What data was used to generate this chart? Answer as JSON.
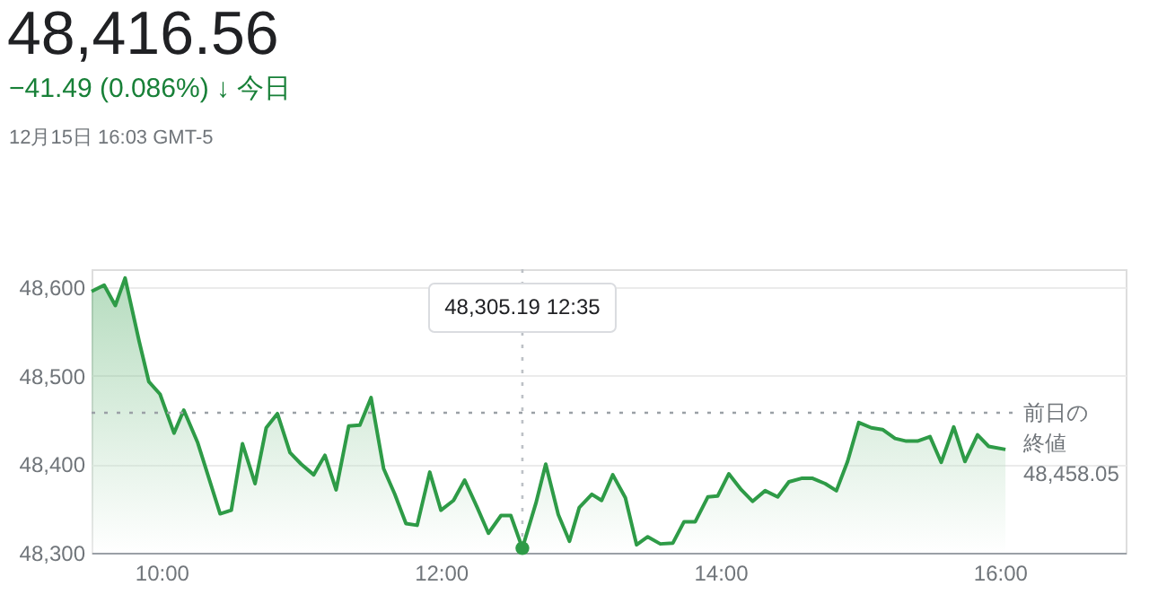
{
  "chart_data": {
    "type": "area",
    "title": "48,416.56",
    "subtitle": "−41.49 (0.086%) ↓ 今日",
    "annotations": [
      "12月15日 16:03 GMT-5",
      "48,305.19 12:35"
    ],
    "series": [
      {
        "color": "#2e9b47",
        "x": [
          9.5,
          9.59,
          9.67,
          9.74,
          9.84,
          9.91,
          9.99,
          10.09,
          10.16,
          10.26,
          10.42,
          10.5,
          10.58,
          10.67,
          10.75,
          10.83,
          10.92,
          11.0,
          11.09,
          11.17,
          11.25,
          11.34,
          11.42,
          11.5,
          11.59,
          11.67,
          11.75,
          11.83,
          11.92,
          12.0,
          12.09,
          12.17,
          12.26,
          12.34,
          12.43,
          12.5,
          12.583,
          12.68,
          12.75,
          12.84,
          12.92,
          12.99,
          13.08,
          13.15,
          13.23,
          13.32,
          13.4,
          13.48,
          13.57,
          13.66,
          13.74,
          13.82,
          13.91,
          13.98,
          14.06,
          14.15,
          14.23,
          14.32,
          14.41,
          14.49,
          14.58,
          14.66,
          14.75,
          14.83,
          14.91,
          14.99,
          15.08,
          15.16,
          15.25,
          15.33,
          15.41,
          15.5,
          15.58,
          15.67,
          15.75,
          15.84,
          15.92,
          16.04
        ],
        "values": [
          48595,
          48602,
          48579,
          48610,
          48539,
          48493,
          48479,
          48435,
          48461,
          48424,
          48344,
          48348,
          48423,
          48378,
          48441,
          48457,
          48413,
          48400,
          48388,
          48410,
          48371,
          48443,
          48444,
          48475,
          48395,
          48366,
          48333,
          48331,
          48391,
          48348,
          48359,
          48382,
          48351,
          48322,
          48342,
          48342,
          48305.19,
          48356,
          48400,
          48343,
          48313,
          48351,
          48366,
          48359,
          48388,
          48362,
          48309,
          48318,
          48310,
          48311,
          48335,
          48335,
          48363,
          48364,
          48389,
          48371,
          48358,
          48370,
          48363,
          48380,
          48384,
          48384,
          48378,
          48370,
          48403,
          48447,
          48441,
          48439,
          48429,
          48426,
          48426,
          48431,
          48402,
          48442,
          48403,
          48433,
          48420,
          48416.56
        ]
      },
      {
        "type": "scatter",
        "color": "#2e9b47",
        "x": [
          12.583
        ],
        "values": [
          48305.19
        ]
      }
    ],
    "xlim": [
      9.5,
      16.9
    ],
    "xticks": [
      {
        "value": 10,
        "label": "10:00"
      },
      {
        "value": 12,
        "label": "12:00"
      },
      {
        "value": 14,
        "label": "14:00"
      },
      {
        "value": 16,
        "label": "16:00"
      }
    ],
    "ylim": [
      48300,
      48620
    ],
    "yticks": [
      {
        "value": 48300,
        "label": "48,300"
      },
      {
        "value": 48400,
        "label": "48,400"
      },
      {
        "value": 48500,
        "label": "48,500"
      },
      {
        "value": 48600,
        "label": "48,600"
      }
    ],
    "ref_lines": [
      {
        "axis": "y",
        "value": 48458.05,
        "label": "前日の終値\n48,458.05",
        "color": "#9aa0a6",
        "line_style": "dotted"
      },
      {
        "axis": "x",
        "value": 12.583,
        "color": "#bdc1c6",
        "line_style": "dotted"
      }
    ],
    "grid": "y"
  }
}
